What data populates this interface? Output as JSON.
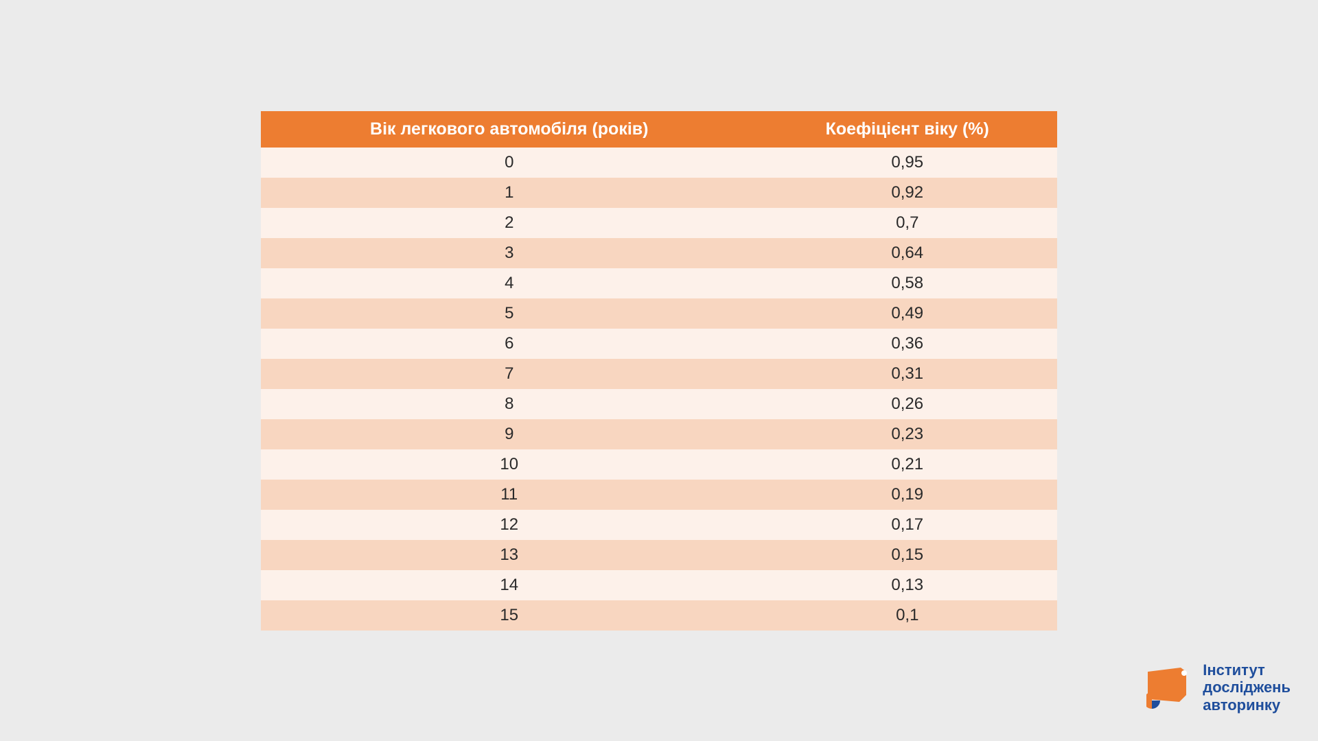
{
  "table": {
    "type": "table",
    "columns": [
      "Вік легкового автомобіля (років)",
      "Коефіцієнт віку (%)"
    ],
    "rows": [
      [
        "0",
        "0,95"
      ],
      [
        "1",
        "0,92"
      ],
      [
        "2",
        "0,7"
      ],
      [
        "3",
        "0,64"
      ],
      [
        "4",
        "0,58"
      ],
      [
        "5",
        "0,49"
      ],
      [
        "6",
        "0,36"
      ],
      [
        "7",
        "0,31"
      ],
      [
        "8",
        "0,26"
      ],
      [
        "9",
        "0,23"
      ],
      [
        "10",
        "0,21"
      ],
      [
        "11",
        "0,19"
      ],
      [
        "12",
        "0,17"
      ],
      [
        "13",
        "0,15"
      ],
      [
        "14",
        "0,13"
      ],
      [
        "15",
        "0,1"
      ]
    ],
    "header_bg": "#ed7d31",
    "header_text_color": "#ffffff",
    "row_colors": [
      "#fdf1ea",
      "#f8d6c0"
    ],
    "text_color": "#2a2a2a",
    "font_size_header": 25,
    "font_size_body": 24
  },
  "logo": {
    "line1": "Інститут",
    "line2": "досліджень",
    "line3": "авторинку",
    "text_color": "#1f4e9c",
    "icon_orange": "#ed7d31",
    "icon_blue": "#1f4e9c"
  },
  "background_color": "#ebebeb"
}
